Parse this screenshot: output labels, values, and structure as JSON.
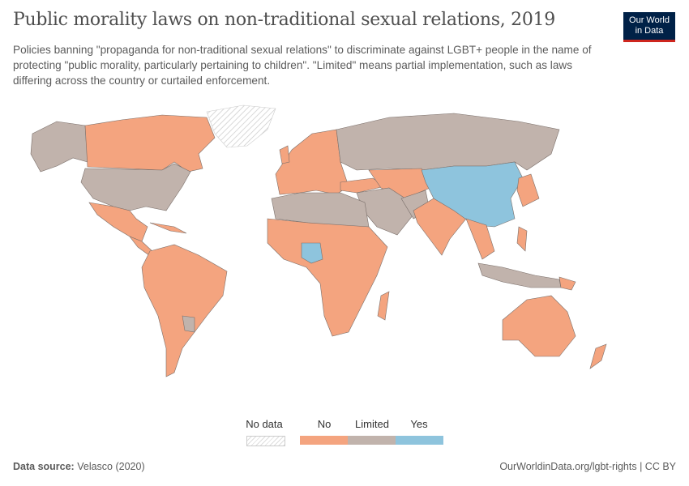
{
  "header": {
    "title": "Public morality laws on non-traditional sexual relations, 2019",
    "subtitle": "Policies banning \"propaganda for non-traditional sexual relations\" to discriminate against LGBT+ people in the name of protecting \"public morality, particularly pertaining to children\". \"Limited\" means partial implementation, such as laws differing across the country or curtailed enforcement.",
    "logo": [
      "Our World",
      "in Data"
    ]
  },
  "legend": {
    "no_data": "No data",
    "categories": [
      {
        "label": "No",
        "color": "#f4a47f"
      },
      {
        "label": "Limited",
        "color": "#c1b3ac"
      },
      {
        "label": "Yes",
        "color": "#8ec4dd"
      }
    ]
  },
  "map": {
    "colors": {
      "no": "#f4a47f",
      "limited": "#c1b3ac",
      "yes": "#8ec4dd",
      "no_data": "#ffffff"
    },
    "regions": {
      "yes": [
        "China",
        "Nigeria"
      ],
      "limited": [
        "United States",
        "Russia",
        "North Africa",
        "Middle East",
        "Central Asia",
        "Indonesia",
        "Paraguay"
      ],
      "no_data": [
        "Greenland"
      ]
    }
  },
  "footer": {
    "source_label": "Data source:",
    "source": "Velasco (2020)",
    "url": "OurWorldinData.org/lgbt-rights | CC BY"
  }
}
